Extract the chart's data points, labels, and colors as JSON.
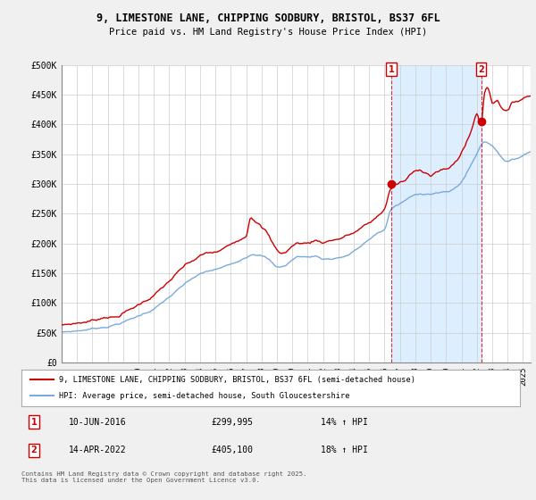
{
  "title": "9, LIMESTONE LANE, CHIPPING SODBURY, BRISTOL, BS37 6FL",
  "subtitle": "Price paid vs. HM Land Registry's House Price Index (HPI)",
  "background_color": "#f0f0f0",
  "plot_bg_color": "#ffffff",
  "shaded_bg_color": "#ddeeff",
  "red_color": "#cc0000",
  "blue_color": "#7aaadd",
  "grid_color": "#cccccc",
  "ylim": [
    0,
    500000
  ],
  "xlim_start": 1995.0,
  "xlim_end": 2025.5,
  "marker1_x": 2016.44,
  "marker1_y": 299995,
  "marker2_x": 2022.28,
  "marker2_y": 405100,
  "legend_label1": "9, LIMESTONE LANE, CHIPPING SODBURY, BRISTOL, BS37 6FL (semi-detached house)",
  "legend_label2": "HPI: Average price, semi-detached house, South Gloucestershire",
  "note1_box": "1",
  "note1_date": "10-JUN-2016",
  "note1_price": "£299,995",
  "note1_hpi": "14% ↑ HPI",
  "note2_box": "2",
  "note2_date": "14-APR-2022",
  "note2_price": "£405,100",
  "note2_hpi": "18% ↑ HPI",
  "footer": "Contains HM Land Registry data © Crown copyright and database right 2025.\nThis data is licensed under the Open Government Licence v3.0."
}
